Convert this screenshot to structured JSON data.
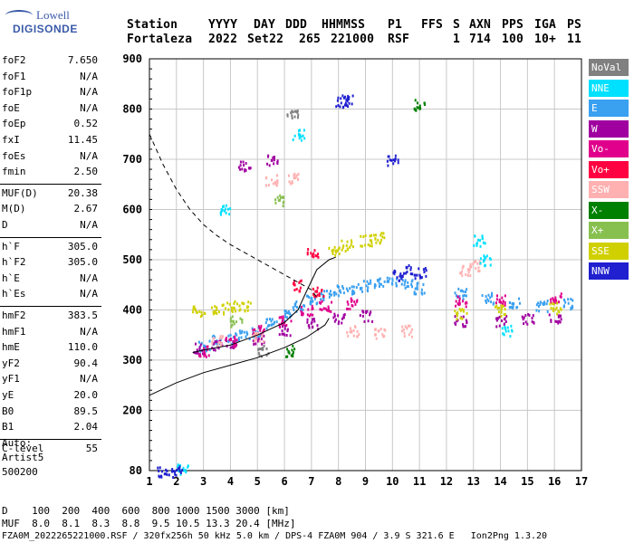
{
  "logo": {
    "line1": "Lowell",
    "line2": "DIGISONDE"
  },
  "header": {
    "labels": [
      "Station",
      "YYYY",
      "DAY",
      "DDD",
      "HHMMSS",
      "P1",
      "FFS",
      "S",
      "AXN",
      "PPS",
      "IGA",
      "PS"
    ],
    "values": [
      "Fortaleza",
      "2022",
      "Set22",
      "265",
      "221000",
      "RSF",
      "",
      "1",
      "714",
      "100",
      "10+",
      "11"
    ]
  },
  "params": [
    {
      "k": "foF2",
      "v": "7.650"
    },
    {
      "k": "foF1",
      "v": "N/A"
    },
    {
      "k": "foF1p",
      "v": "N/A"
    },
    {
      "k": "foE",
      "v": "N/A"
    },
    {
      "k": "foEp",
      "v": "0.52"
    },
    {
      "k": "fxI",
      "v": "11.45"
    },
    {
      "k": "foEs",
      "v": "N/A"
    },
    {
      "k": "fmin",
      "v": "2.50"
    },
    {
      "k": "MUF(D)",
      "v": "20.38"
    },
    {
      "k": "M(D)",
      "v": "2.67"
    },
    {
      "k": "D",
      "v": "N/A"
    },
    {
      "k": "h`F",
      "v": "305.0"
    },
    {
      "k": "h`F2",
      "v": "305.0"
    },
    {
      "k": "h`E",
      "v": "N/A"
    },
    {
      "k": "h`Es",
      "v": "N/A"
    },
    {
      "k": "hmF2",
      "v": "383.5"
    },
    {
      "k": "hmF1",
      "v": "N/A"
    },
    {
      "k": "hmE",
      "v": "110.0"
    },
    {
      "k": "yF2",
      "v": "90.4"
    },
    {
      "k": "yF1",
      "v": "N/A"
    },
    {
      "k": "yE",
      "v": "20.0"
    },
    {
      "k": "B0",
      "v": "89.5"
    },
    {
      "k": "B1",
      "v": "2.04"
    },
    {
      "k": "C-level",
      "v": "55"
    }
  ],
  "auto": {
    "line1": "Auto:",
    "line2": "Artist5",
    "line3": "500200"
  },
  "legend": [
    {
      "label": "NoVal",
      "color": "#808080"
    },
    {
      "label": "NNE",
      "color": "#00e0ff"
    },
    {
      "label": "E",
      "color": "#3aa0f0"
    },
    {
      "label": "W",
      "color": "#a000a0"
    },
    {
      "label": "Vo-",
      "color": "#e0008c"
    },
    {
      "label": "Vo+",
      "color": "#ff0040"
    },
    {
      "label": "SSW",
      "color": "#ffb0b0"
    },
    {
      "label": "X-",
      "color": "#008000"
    },
    {
      "label": "X+",
      "color": "#88c050"
    },
    {
      "label": "SSE",
      "color": "#d0d000"
    },
    {
      "label": "NNW",
      "color": "#2020d0"
    }
  ],
  "footer": {
    "d_row_label": "D",
    "d_row": "100  200  400  600  800 1000 1500 3000 [km]",
    "muf_row_label": "MUF",
    "muf_row": "8.0  8.1  8.3  8.8  9.5 10.5 13.3 20.4 [MHz]",
    "info": "FZA0M_2022265221000.RSF / 320fx256h 50 kHz 5.0 km / DPS-4 FZA0M 904 / 3.9 S 321.6 E   Ion2Png 1.3.20"
  },
  "chart_data": {
    "type": "scatter",
    "title": "",
    "xlabel": "",
    "ylabel": "",
    "xlim": [
      1,
      17
    ],
    "ylim": [
      80,
      900
    ],
    "x_ticks": [
      1,
      2,
      3,
      4,
      5,
      6,
      7,
      8,
      9,
      10,
      11,
      12,
      13,
      14,
      15,
      16,
      17
    ],
    "y_ticks": [
      80,
      200,
      300,
      400,
      500,
      600,
      700,
      800,
      900
    ],
    "grid": true,
    "x_axis_unit": "MHz",
    "y_axis_unit": "km",
    "series": [
      {
        "name": "E",
        "color": "#3aa0f0",
        "points": [
          [
            3,
            330
          ],
          [
            3.5,
            340
          ],
          [
            4,
            345
          ],
          [
            4.5,
            350
          ],
          [
            5,
            360
          ],
          [
            5.5,
            375
          ],
          [
            6,
            390
          ],
          [
            6.5,
            410
          ],
          [
            7,
            425
          ],
          [
            7.5,
            430
          ],
          [
            8,
            440
          ],
          [
            8.5,
            445
          ],
          [
            9,
            450
          ],
          [
            9.5,
            455
          ],
          [
            10,
            460
          ],
          [
            10.5,
            455
          ],
          [
            11,
            445
          ],
          [
            12.5,
            435
          ],
          [
            13.5,
            425
          ],
          [
            14.5,
            415
          ],
          [
            15.5,
            410
          ],
          [
            16.5,
            415
          ]
        ]
      },
      {
        "name": "W",
        "color": "#a000a0",
        "points": [
          [
            2.8,
            325
          ],
          [
            3.5,
            330
          ],
          [
            4,
            335
          ],
          [
            5,
            345
          ],
          [
            6,
            360
          ],
          [
            7,
            375
          ],
          [
            8,
            385
          ],
          [
            9,
            390
          ],
          [
            12.5,
            380
          ],
          [
            14,
            380
          ],
          [
            15,
            385
          ],
          [
            16,
            385
          ],
          [
            4.5,
            690
          ],
          [
            5.5,
            700
          ]
        ]
      },
      {
        "name": "Vo-",
        "color": "#e0008c",
        "points": [
          [
            3,
            320
          ],
          [
            4,
            340
          ],
          [
            5,
            360
          ],
          [
            6,
            380
          ],
          [
            6.8,
            400
          ],
          [
            7.5,
            410
          ],
          [
            8.5,
            415
          ],
          [
            12.5,
            420
          ],
          [
            14,
            420
          ],
          [
            16,
            425
          ]
        ]
      },
      {
        "name": "Vo+",
        "color": "#ff0040",
        "points": [
          [
            7,
            515
          ],
          [
            6.5,
            450
          ],
          [
            7.2,
            440
          ]
        ]
      },
      {
        "name": "SSW",
        "color": "#ffb0b0",
        "points": [
          [
            5.5,
            660
          ],
          [
            6.3,
            665
          ],
          [
            3.5,
            340
          ],
          [
            5,
            350
          ],
          [
            8.5,
            360
          ],
          [
            9.5,
            355
          ],
          [
            10.5,
            360
          ],
          [
            12.7,
            480
          ],
          [
            13,
            490
          ]
        ]
      },
      {
        "name": "X-",
        "color": "#008000",
        "points": [
          [
            6.2,
            320
          ],
          [
            11,
            810
          ]
        ]
      },
      {
        "name": "X+",
        "color": "#88c050",
        "points": [
          [
            5.8,
            620
          ],
          [
            4.2,
            380
          ]
        ]
      },
      {
        "name": "SSE",
        "color": "#d0d000",
        "points": [
          [
            2.8,
            400
          ],
          [
            3.5,
            405
          ],
          [
            4,
            410
          ],
          [
            4.5,
            408
          ],
          [
            7.8,
            520
          ],
          [
            8.3,
            530
          ],
          [
            9,
            540
          ],
          [
            9.5,
            545
          ],
          [
            12.5,
            395
          ],
          [
            14,
            400
          ],
          [
            16,
            405
          ]
        ]
      },
      {
        "name": "NNE",
        "color": "#00e0ff",
        "points": [
          [
            2.2,
            85
          ],
          [
            3.8,
            600
          ],
          [
            6.5,
            750
          ],
          [
            13.2,
            540
          ],
          [
            13.4,
            500
          ],
          [
            14.2,
            360
          ]
        ]
      },
      {
        "name": "NNW",
        "color": "#2020d0",
        "points": [
          [
            8.1,
            815
          ],
          [
            8.3,
            820
          ],
          [
            10,
            700
          ],
          [
            10.2,
            470
          ],
          [
            10.5,
            480
          ],
          [
            11,
            475
          ],
          [
            2,
            80
          ],
          [
            1.5,
            80
          ]
        ]
      },
      {
        "name": "NoVal",
        "color": "#808080",
        "points": [
          [
            6.3,
            790
          ],
          [
            5.2,
            320
          ]
        ]
      }
    ],
    "profile_solid": [
      [
        1,
        230
      ],
      [
        2,
        255
      ],
      [
        3,
        275
      ],
      [
        4,
        290
      ],
      [
        5,
        305
      ],
      [
        6,
        325
      ],
      [
        6.8,
        345
      ],
      [
        7.5,
        370
      ],
      [
        7.65,
        383.5
      ]
    ],
    "trace_solid": [
      [
        2.6,
        315
      ],
      [
        3,
        320
      ],
      [
        4,
        330
      ],
      [
        5,
        350
      ],
      [
        6,
        375
      ],
      [
        6.5,
        400
      ],
      [
        6.8,
        435
      ],
      [
        7.2,
        480
      ],
      [
        7.65,
        500
      ],
      [
        7.9,
        505
      ]
    ],
    "mofi_dashed": [
      [
        1,
        750
      ],
      [
        1.5,
        690
      ],
      [
        2,
        640
      ],
      [
        2.5,
        600
      ],
      [
        3,
        570
      ],
      [
        3.5,
        548
      ],
      [
        4,
        530
      ],
      [
        5,
        500
      ],
      [
        6,
        470
      ],
      [
        6.5,
        455
      ],
      [
        7,
        440
      ],
      [
        7.2,
        425
      ]
    ]
  }
}
